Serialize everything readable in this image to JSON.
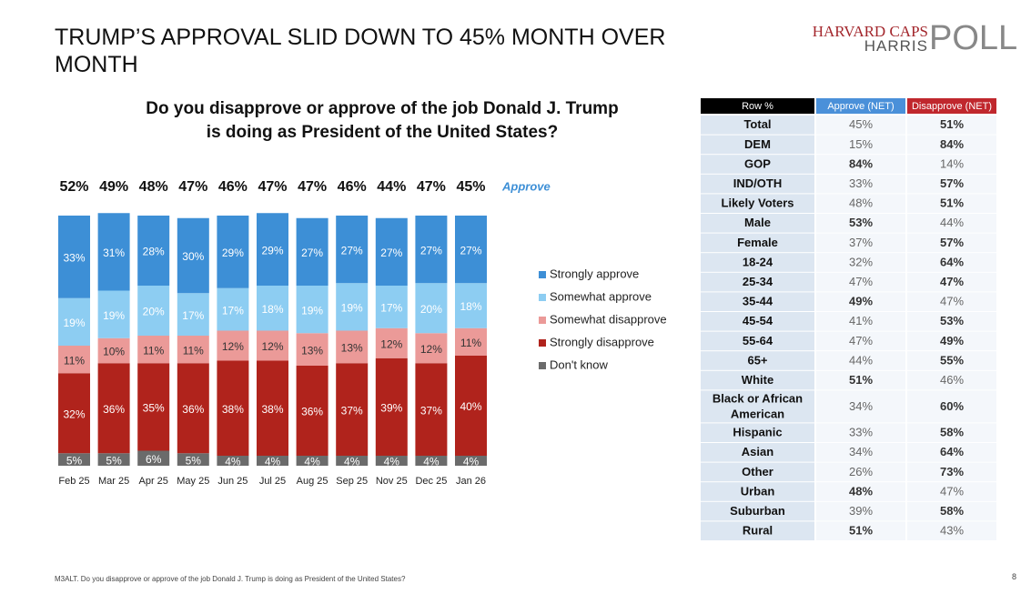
{
  "title": "TRUMP’S APPROVAL SLID DOWN TO 45% MONTH OVER MONTH",
  "logo": {
    "line1": "HARVARD CAPS",
    "line2": "HARRIS",
    "line3": "POLL"
  },
  "footnote": "M3ALT. Do you disapprove or approve of the job Donald J. Trump is doing as President of the United States?",
  "page_number": "8",
  "chart_data": {
    "type": "stacked_bar",
    "title": "Do you disapprove or approve of the job Donald J. Trump is doing as President of the United States?",
    "categories": [
      "Feb 25",
      "Mar 25",
      "Apr 25",
      "May 25",
      "Jun 25",
      "Jul 25",
      "Aug 25",
      "Sep 25",
      "Nov 25",
      "Dec 25",
      "Jan 26"
    ],
    "series": [
      {
        "name": "Strongly approve",
        "color": "#3d8fd6",
        "label_color": "#ffffff",
        "values": [
          33,
          31,
          28,
          30,
          29,
          29,
          27,
          27,
          27,
          27,
          27
        ],
        "value_labels": [
          "33%",
          "31%",
          "28%",
          "30%",
          "29%",
          "29%",
          "27%",
          "27%",
          "27%",
          "27%",
          "27%"
        ]
      },
      {
        "name": "Somewhat approve",
        "color": "#8dcdf2",
        "label_color": "#ffffff",
        "values": [
          19,
          19,
          20,
          17,
          17,
          18,
          19,
          19,
          17,
          20,
          18
        ],
        "value_labels": [
          "19%",
          "19%",
          "20%",
          "17%",
          "17%",
          "18%",
          "19%",
          "19%",
          "17%",
          "20%",
          "18%"
        ]
      },
      {
        "name": "Somewhat disapprove",
        "color": "#eb9a98",
        "label_color": "#333333",
        "values": [
          11,
          10,
          11,
          11,
          12,
          12,
          13,
          13,
          12,
          12,
          11
        ],
        "value_labels": [
          "11%",
          "10%",
          "11%",
          "11%",
          "12%",
          "12%",
          "13%",
          "13%",
          "12%",
          "12%",
          "11%"
        ]
      },
      {
        "name": "Strongly disapprove",
        "color": "#b0231c",
        "label_color": "#ffffff",
        "values": [
          32,
          36,
          35,
          36,
          38,
          38,
          36,
          37,
          39,
          37,
          40
        ],
        "value_labels": [
          "32%",
          "36%",
          "35%",
          "36%",
          "38%",
          "38%",
          "36%",
          "37%",
          "39%",
          "37%",
          "40%"
        ]
      },
      {
        "name": "Don't know",
        "color": "#6b6b6b",
        "label_color": "#ffffff",
        "values": [
          5,
          5,
          6,
          5,
          4,
          4,
          4,
          4,
          4,
          4,
          4
        ],
        "value_labels": [
          "5%",
          "5%",
          "6%",
          "5%",
          "4%",
          "4%",
          "4%",
          "4%",
          "4%",
          "4%",
          "4%"
        ]
      }
    ],
    "approve_totals": {
      "name": "Approve",
      "values": [
        52,
        49,
        48,
        47,
        46,
        47,
        47,
        46,
        44,
        47,
        45
      ],
      "value_labels": [
        "52%",
        "49%",
        "48%",
        "47%",
        "46%",
        "47%",
        "47%",
        "46%",
        "44%",
        "47%",
        "45%"
      ]
    }
  },
  "table": {
    "header": [
      "Row %",
      "Approve (NET)",
      "Disapprove (NET)"
    ],
    "rows": [
      [
        "Total",
        "45%",
        "51%"
      ],
      [
        "DEM",
        "15%",
        "84%"
      ],
      [
        "GOP",
        "84%",
        "14%"
      ],
      [
        "IND/OTH",
        "33%",
        "57%"
      ],
      [
        "Likely Voters",
        "48%",
        "51%"
      ],
      [
        "Male",
        "53%",
        "44%"
      ],
      [
        "Female",
        "37%",
        "57%"
      ],
      [
        "18-24",
        "32%",
        "64%"
      ],
      [
        "25-34",
        "47%",
        "47%"
      ],
      [
        "35-44",
        "49%",
        "47%"
      ],
      [
        "45-54",
        "41%",
        "53%"
      ],
      [
        "55-64",
        "47%",
        "49%"
      ],
      [
        "65+",
        "44%",
        "55%"
      ],
      [
        "White",
        "51%",
        "46%"
      ],
      [
        "Black or African American",
        "34%",
        "60%"
      ],
      [
        "Hispanic",
        "33%",
        "58%"
      ],
      [
        "Asian",
        "34%",
        "64%"
      ],
      [
        "Other",
        "26%",
        "73%"
      ],
      [
        "Urban",
        "48%",
        "47%"
      ],
      [
        "Suburban",
        "39%",
        "58%"
      ],
      [
        "Rural",
        "51%",
        "43%"
      ]
    ]
  }
}
